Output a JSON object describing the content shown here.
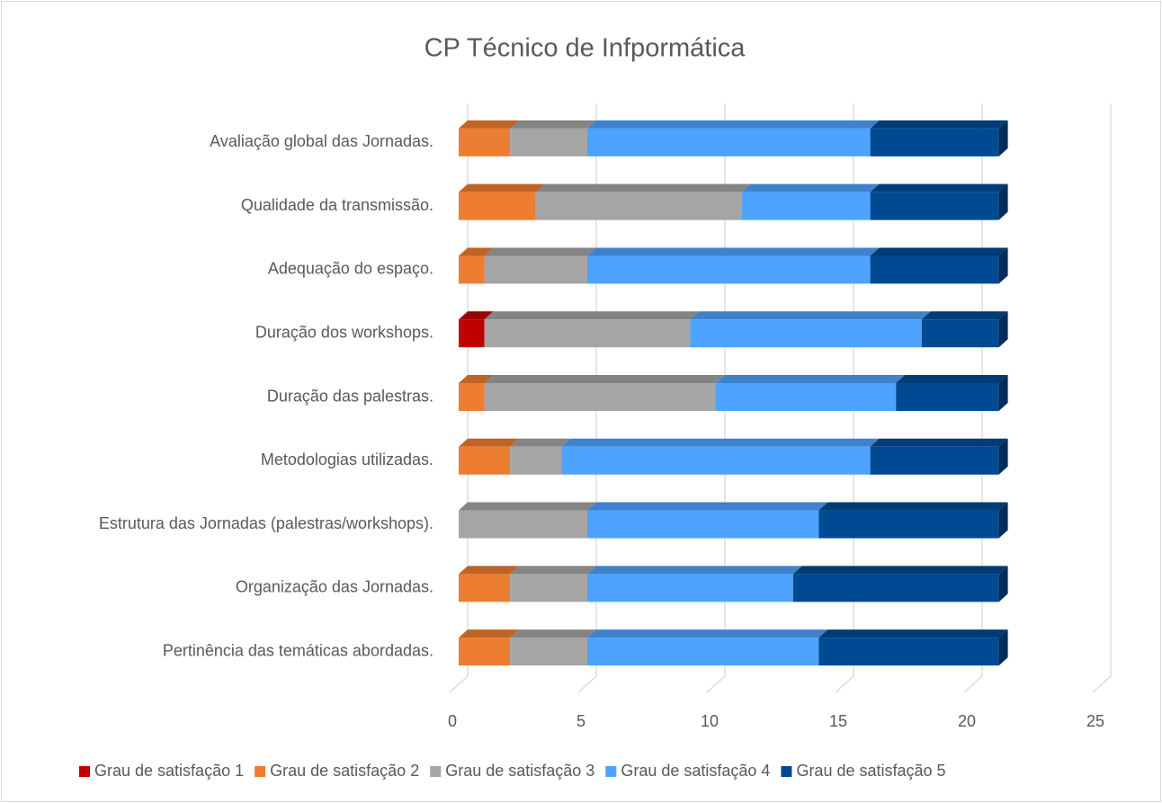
{
  "chart_data": {
    "type": "bar3d_stacked_horizontal",
    "title": "CP Técnico de Infpormática",
    "categories": [
      "Avaliação global das Jornadas.",
      "Qualidade da transmissão.",
      "Adequação do espaço.",
      "Duração dos workshops.",
      "Duração das palestras.",
      "Metodologias utilizadas.",
      "Estrutura das Jornadas (palestras/workshops).",
      "Organização das Jornadas.",
      "Pertinência das temáticas abordadas."
    ],
    "series": [
      {
        "name": "Grau de satisfação 1",
        "color": "#c00000",
        "values": [
          0,
          0,
          0,
          1,
          0,
          0,
          0,
          0,
          0
        ]
      },
      {
        "name": "Grau de satisfação 2",
        "color": "#ed7d31",
        "values": [
          2,
          3,
          1,
          0,
          1,
          2,
          0,
          2,
          2
        ]
      },
      {
        "name": "Grau de satisfação 3",
        "color": "#a5a5a5",
        "values": [
          3,
          8,
          4,
          8,
          9,
          2,
          5,
          3,
          3
        ]
      },
      {
        "name": "Grau de satisfação 4",
        "color": "#4da3ff",
        "values": [
          11,
          5,
          11,
          9,
          7,
          12,
          9,
          8,
          9
        ]
      },
      {
        "name": "Grau de satisfação 5",
        "color": "#004a94",
        "values": [
          5,
          5,
          5,
          3,
          4,
          5,
          7,
          8,
          7
        ]
      }
    ],
    "xlim": [
      0,
      25
    ],
    "xticks": [
      0,
      5,
      10,
      15,
      20,
      25
    ],
    "grid": true
  }
}
